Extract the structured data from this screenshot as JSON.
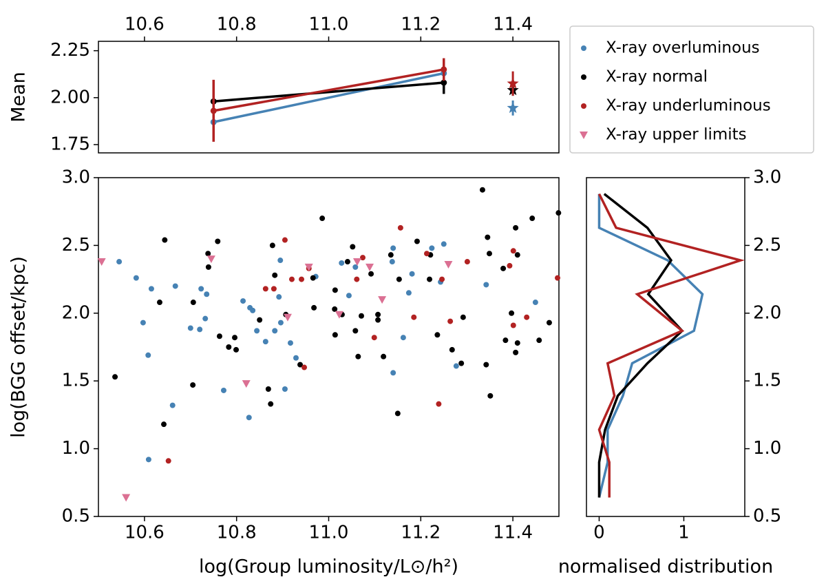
{
  "chart_data": [
    {
      "type": "line",
      "ylabel": "Mean",
      "xaxis": "top",
      "x": [
        10.75,
        11.25
      ],
      "overall_x": 11.4,
      "xlim": [
        10.5,
        11.5
      ],
      "xticks": [
        10.6,
        10.8,
        {
          "value": 11,
          "label": "11.0"
        },
        11.2,
        11.4
      ],
      "ylim": [
        1.706,
        2.3
      ],
      "yticks": [
        1.75,
        {
          "value": 2,
          "label": "2.00"
        },
        2.25
      ],
      "series": [
        {
          "color": "#4682b4",
          "values": [
            1.87,
            2.13
          ],
          "errors": [
            0.1,
            0.08
          ],
          "overall_value": 1.945,
          "overall_error": 0.04
        },
        {
          "color": "#000000",
          "values": [
            1.98,
            2.08
          ],
          "errors": [
            0.08,
            0.06
          ],
          "overall_value": 2.04,
          "overall_error": 0.03
        },
        {
          "color": "#b22222",
          "values": [
            1.93,
            2.15
          ],
          "errors": [
            0.165,
            0.06
          ],
          "overall_value": 2.075,
          "overall_error": 0.065
        }
      ]
    },
    {
      "type": "scatter",
      "xlabel": "log(Group luminosity/L⊙/h²)",
      "ylabel": "log(BGG offset/kpc)",
      "xlim": [
        10.5,
        11.5
      ],
      "xticks": [
        10.6,
        10.8,
        {
          "value": 11,
          "label": "11.0"
        },
        11.2,
        11.4
      ],
      "ylim": [
        0.5,
        3.0
      ],
      "yticks": [
        0.5,
        {
          "value": 1,
          "label": "1.0"
        },
        1.5,
        {
          "value": 2,
          "label": "2.0"
        },
        2.5,
        {
          "value": 3,
          "label": "3.0"
        }
      ],
      "series": [
        {
          "name": "X-ray overluminous",
          "color": "#4682b4",
          "marker": "circle",
          "x": [
            10.545,
            10.582,
            10.597,
            10.608,
            10.615,
            10.609,
            10.661,
            10.667,
            10.7,
            10.72,
            10.723,
            10.732,
            10.735,
            10.772,
            10.814,
            10.829,
            10.835,
            10.844,
            10.863,
            10.827,
            10.883,
            10.892,
            10.896,
            10.895,
            10.905,
            10.917,
            10.929,
            10.972,
            11.028,
            11.044,
            11.058,
            11.138,
            11.14,
            11.162,
            11.174,
            11.181,
            11.224,
            11.243,
            11.25,
            11.277,
            11.342,
            11.449,
            11.14
          ],
          "values": [
            2.38,
            2.26,
            1.93,
            1.69,
            2.18,
            0.92,
            1.32,
            2.2,
            1.89,
            1.88,
            2.18,
            1.96,
            2.14,
            1.43,
            2.09,
            2.04,
            2.02,
            1.87,
            1.79,
            1.23,
            1.87,
            2.12,
            1.93,
            2.39,
            1.44,
            1.78,
            1.67,
            2.27,
            2.37,
            2.13,
            2.34,
            2.38,
            2.48,
            1.82,
            2.15,
            2.29,
            2.48,
            2.23,
            2.51,
            1.61,
            2.21,
            2.08,
            1.56
          ]
        },
        {
          "name": "X-ray normal",
          "color": "#000000",
          "marker": "circle",
          "x": [
            10.536,
            10.633,
            10.644,
            10.642,
            10.705,
            10.706,
            10.738,
            10.739,
            10.759,
            10.763,
            10.783,
            10.796,
            10.799,
            10.85,
            10.869,
            10.874,
            10.878,
            10.883,
            10.907,
            10.938,
            10.966,
            10.986,
            10.968,
            11.013,
            11.014,
            11.014,
            11.029,
            11.041,
            11.052,
            11.058,
            11.064,
            11.071,
            11.092,
            11.107,
            11.107,
            11.119,
            11.153,
            11.135,
            11.15,
            11.192,
            11.221,
            11.219,
            11.236,
            11.268,
            11.288,
            11.292,
            11.334,
            11.342,
            11.345,
            11.349,
            11.351,
            11.379,
            11.384,
            11.397,
            11.406,
            11.406,
            11.41,
            11.41,
            11.442,
            11.457,
            11.479,
            11.499
          ],
          "values": [
            1.53,
            2.08,
            2.54,
            1.18,
            1.47,
            2.08,
            2.44,
            2.34,
            2.53,
            1.83,
            1.75,
            1.82,
            1.73,
            1.95,
            1.44,
            1.33,
            2.5,
            2.28,
            1.99,
            1.62,
            2.26,
            2.7,
            2.04,
            2.03,
            2.17,
            1.84,
            1.99,
            2.38,
            2.49,
            1.87,
            1.68,
            1.98,
            2.29,
            1.99,
            1.95,
            1.68,
            2.25,
            2.43,
            1.26,
            2.53,
            2.43,
            2.25,
            1.84,
            1.73,
            1.63,
            1.97,
            2.91,
            1.62,
            2.56,
            2.44,
            1.39,
            2.33,
            1.8,
            2.0,
            2.63,
            1.71,
            1.78,
            2.43,
            2.7,
            1.8,
            1.93,
            2.74
          ]
        },
        {
          "name": "X-ray underluminous",
          "color": "#b22222",
          "marker": "circle",
          "x": [
            10.652,
            10.863,
            10.881,
            10.905,
            10.92,
            10.941,
            10.947,
            10.957,
            11.061,
            11.074,
            11.099,
            11.156,
            11.185,
            11.213,
            11.239,
            11.246,
            11.264,
            11.301,
            11.393,
            11.401,
            11.401,
            11.43,
            11.497
          ],
          "values": [
            0.91,
            2.18,
            2.18,
            2.54,
            2.25,
            2.25,
            1.6,
            2.33,
            2.25,
            2.41,
            1.82,
            2.63,
            1.97,
            2.44,
            1.33,
            2.25,
            1.94,
            2.38,
            2.35,
            2.46,
            1.91,
            1.97,
            2.26
          ]
        },
        {
          "name": "X-ray upper limits",
          "color": "#db7093",
          "marker": "triangle",
          "x": [
            10.507,
            10.56,
            10.745,
            10.821,
            10.911,
            10.957,
            11.023,
            11.062,
            11.089,
            11.116,
            11.26
          ],
          "values": [
            2.38,
            0.64,
            2.4,
            1.48,
            1.97,
            2.34,
            1.99,
            2.38,
            2.34,
            2.1,
            2.36
          ]
        }
      ]
    },
    {
      "type": "line",
      "orientation": "horizontal",
      "xlabel": "normalised distribution",
      "yaxis": "right",
      "xlim": [
        -0.15,
        1.72
      ],
      "xticks": [
        0,
        1
      ],
      "ylim": [
        0.5,
        3.0
      ],
      "yticks": [
        0.5,
        {
          "value": 1,
          "label": "1.0"
        },
        1.5,
        {
          "value": 2,
          "label": "2.0"
        },
        2.5,
        {
          "value": 3,
          "label": "3.0"
        }
      ],
      "y": [
        2.88,
        2.63,
        2.39,
        2.14,
        1.87,
        1.63,
        1.39,
        1.14,
        0.9,
        0.64
      ],
      "series": [
        {
          "color": "#4682b4",
          "values": [
            0,
            0,
            0.81,
            1.22,
            1.12,
            0.39,
            0.28,
            0.1,
            0.1,
            0
          ]
        },
        {
          "color": "#000000",
          "values": [
            0.06,
            0.57,
            0.85,
            0.58,
            0.98,
            0.57,
            0.22,
            0.07,
            0,
            0
          ]
        },
        {
          "color": "#b22222",
          "values": [
            0,
            0.2,
            1.67,
            0.45,
            0.98,
            0.1,
            0.18,
            0,
            0.12,
            0.12
          ]
        }
      ]
    }
  ]
}
